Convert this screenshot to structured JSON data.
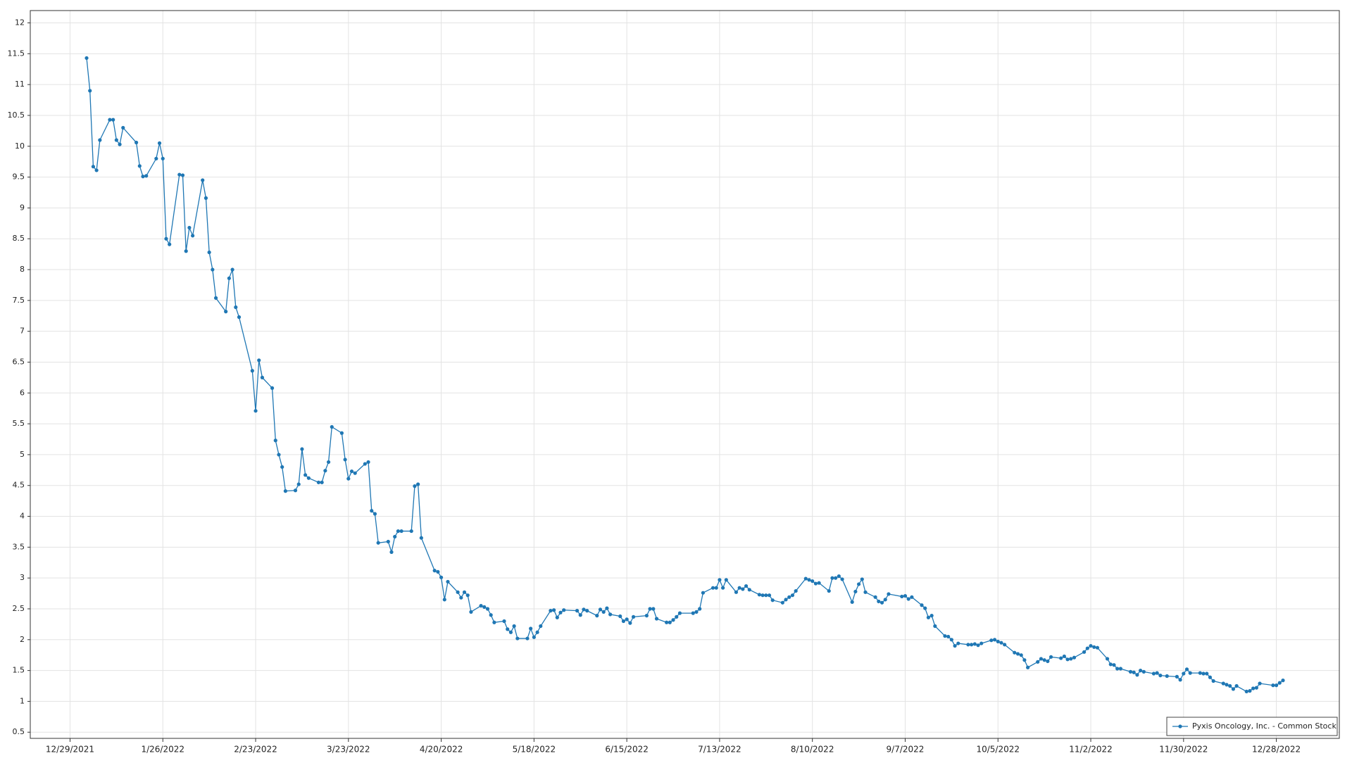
{
  "chart_data": {
    "type": "line",
    "series": [
      {
        "name": "Pyxis Oncology, Inc. - Common Stock",
        "color": "#1f77b4",
        "x": [
          "1/3/2022",
          "1/4/2022",
          "1/5/2022",
          "1/6/2022",
          "1/7/2022",
          "1/10/2022",
          "1/11/2022",
          "1/12/2022",
          "1/13/2022",
          "1/14/2022",
          "1/18/2022",
          "1/19/2022",
          "1/20/2022",
          "1/21/2022",
          "1/24/2022",
          "1/25/2022",
          "1/26/2022",
          "1/27/2022",
          "1/28/2022",
          "1/31/2022",
          "2/1/2022",
          "2/2/2022",
          "2/3/2022",
          "2/4/2022",
          "2/7/2022",
          "2/8/2022",
          "2/9/2022",
          "2/10/2022",
          "2/11/2022",
          "2/14/2022",
          "2/15/2022",
          "2/16/2022",
          "2/17/2022",
          "2/18/2022",
          "2/22/2022",
          "2/23/2022",
          "2/24/2022",
          "2/25/2022",
          "2/28/2022",
          "3/1/2022",
          "3/2/2022",
          "3/3/2022",
          "3/4/2022",
          "3/7/2022",
          "3/8/2022",
          "3/9/2022",
          "3/10/2022",
          "3/11/2022",
          "3/14/2022",
          "3/15/2022",
          "3/16/2022",
          "3/17/2022",
          "3/18/2022",
          "3/21/2022",
          "3/22/2022",
          "3/23/2022",
          "3/24/2022",
          "3/25/2022",
          "3/28/2022",
          "3/29/2022",
          "3/30/2022",
          "3/31/2022",
          "4/1/2022",
          "4/4/2022",
          "4/5/2022",
          "4/6/2022",
          "4/7/2022",
          "4/8/2022",
          "4/11/2022",
          "4/12/2022",
          "4/13/2022",
          "4/14/2022",
          "4/18/2022",
          "4/19/2022",
          "4/20/2022",
          "4/21/2022",
          "4/22/2022",
          "4/25/2022",
          "4/26/2022",
          "4/27/2022",
          "4/28/2022",
          "4/29/2022",
          "5/2/2022",
          "5/3/2022",
          "5/4/2022",
          "5/5/2022",
          "5/6/2022",
          "5/9/2022",
          "5/10/2022",
          "5/11/2022",
          "5/12/2022",
          "5/13/2022",
          "5/16/2022",
          "5/17/2022",
          "5/18/2022",
          "5/19/2022",
          "5/20/2022",
          "5/23/2022",
          "5/24/2022",
          "5/25/2022",
          "5/26/2022",
          "5/27/2022",
          "5/31/2022",
          "6/1/2022",
          "6/2/2022",
          "6/3/2022",
          "6/6/2022",
          "6/7/2022",
          "6/8/2022",
          "6/9/2022",
          "6/10/2022",
          "6/13/2022",
          "6/14/2022",
          "6/15/2022",
          "6/16/2022",
          "6/17/2022",
          "6/21/2022",
          "6/22/2022",
          "6/23/2022",
          "6/24/2022",
          "6/27/2022",
          "6/28/2022",
          "6/29/2022",
          "6/30/2022",
          "7/1/2022",
          "7/5/2022",
          "7/6/2022",
          "7/7/2022",
          "7/8/2022",
          "7/11/2022",
          "7/12/2022",
          "7/13/2022",
          "7/14/2022",
          "7/15/2022",
          "7/18/2022",
          "7/19/2022",
          "7/20/2022",
          "7/21/2022",
          "7/22/2022",
          "7/25/2022",
          "7/26/2022",
          "7/27/2022",
          "7/28/2022",
          "7/29/2022",
          "8/1/2022",
          "8/2/2022",
          "8/3/2022",
          "8/4/2022",
          "8/5/2022",
          "8/8/2022",
          "8/9/2022",
          "8/10/2022",
          "8/11/2022",
          "8/12/2022",
          "8/15/2022",
          "8/16/2022",
          "8/17/2022",
          "8/18/2022",
          "8/19/2022",
          "8/22/2022",
          "8/23/2022",
          "8/24/2022",
          "8/25/2022",
          "8/26/2022",
          "8/29/2022",
          "8/30/2022",
          "8/31/2022",
          "9/1/2022",
          "9/2/2022",
          "9/6/2022",
          "9/7/2022",
          "9/8/2022",
          "9/9/2022",
          "9/12/2022",
          "9/13/2022",
          "9/14/2022",
          "9/15/2022",
          "9/16/2022",
          "9/19/2022",
          "9/20/2022",
          "9/21/2022",
          "9/22/2022",
          "9/23/2022",
          "9/26/2022",
          "9/27/2022",
          "9/28/2022",
          "9/29/2022",
          "9/30/2022",
          "10/3/2022",
          "10/4/2022",
          "10/5/2022",
          "10/6/2022",
          "10/7/2022",
          "10/10/2022",
          "10/11/2022",
          "10/12/2022",
          "10/13/2022",
          "10/14/2022",
          "10/17/2022",
          "10/18/2022",
          "10/19/2022",
          "10/20/2022",
          "10/21/2022",
          "10/24/2022",
          "10/25/2022",
          "10/26/2022",
          "10/27/2022",
          "10/28/2022",
          "10/31/2022",
          "11/1/2022",
          "11/2/2022",
          "11/3/2022",
          "11/4/2022",
          "11/7/2022",
          "11/8/2022",
          "11/9/2022",
          "11/10/2022",
          "11/11/2022",
          "11/14/2022",
          "11/15/2022",
          "11/16/2022",
          "11/17/2022",
          "11/18/2022",
          "11/21/2022",
          "11/22/2022",
          "11/23/2022",
          "11/25/2022",
          "11/28/2022",
          "11/29/2022",
          "11/30/2022",
          "12/1/2022",
          "12/2/2022",
          "12/5/2022",
          "12/6/2022",
          "12/7/2022",
          "12/8/2022",
          "12/9/2022",
          "12/12/2022",
          "12/13/2022",
          "12/14/2022",
          "12/15/2022",
          "12/16/2022",
          "12/19/2022",
          "12/20/2022",
          "12/21/2022",
          "12/22/2022",
          "12/23/2022",
          "12/27/2022",
          "12/28/2022",
          "12/29/2022",
          "12/30/2022"
        ],
        "values": [
          11.43,
          10.9,
          9.67,
          9.61,
          10.1,
          10.43,
          10.43,
          10.1,
          10.03,
          10.3,
          10.06,
          9.68,
          9.51,
          9.52,
          9.8,
          10.05,
          9.8,
          8.5,
          8.41,
          9.54,
          9.53,
          8.3,
          8.68,
          8.55,
          9.45,
          9.16,
          8.28,
          8.0,
          7.54,
          7.32,
          7.86,
          8.0,
          7.39,
          7.23,
          6.36,
          5.71,
          6.53,
          6.25,
          6.08,
          5.23,
          5.0,
          4.8,
          4.41,
          4.42,
          4.52,
          5.09,
          4.67,
          4.62,
          4.55,
          4.55,
          4.74,
          4.88,
          5.45,
          5.35,
          4.92,
          4.61,
          4.73,
          4.7,
          4.85,
          4.88,
          4.09,
          4.04,
          3.57,
          3.59,
          3.42,
          3.67,
          3.76,
          3.76,
          3.76,
          4.49,
          4.52,
          3.65,
          3.12,
          3.1,
          3.01,
          2.65,
          2.94,
          2.77,
          2.68,
          2.77,
          2.72,
          2.45,
          2.55,
          2.53,
          2.5,
          2.4,
          2.28,
          2.3,
          2.17,
          2.12,
          2.22,
          2.02,
          2.02,
          2.18,
          2.04,
          2.12,
          2.22,
          2.47,
          2.48,
          2.36,
          2.44,
          2.48,
          2.47,
          2.4,
          2.49,
          2.47,
          2.39,
          2.49,
          2.45,
          2.51,
          2.41,
          2.38,
          2.3,
          2.33,
          2.27,
          2.37,
          2.39,
          2.5,
          2.5,
          2.34,
          2.28,
          2.28,
          2.32,
          2.37,
          2.43,
          2.43,
          2.45,
          2.5,
          2.76,
          2.84,
          2.84,
          2.97,
          2.84,
          2.97,
          2.77,
          2.84,
          2.82,
          2.87,
          2.81,
          2.73,
          2.72,
          2.72,
          2.72,
          2.64,
          2.6,
          2.65,
          2.69,
          2.72,
          2.79,
          2.99,
          2.97,
          2.95,
          2.91,
          2.92,
          2.79,
          3.0,
          3.0,
          3.03,
          2.98,
          2.61,
          2.78,
          2.9,
          2.98,
          2.77,
          2.69,
          2.62,
          2.6,
          2.65,
          2.74,
          2.7,
          2.71,
          2.66,
          2.69,
          2.56,
          2.51,
          2.36,
          2.39,
          2.22,
          2.06,
          2.05,
          2.0,
          1.9,
          1.94,
          1.92,
          1.92,
          1.93,
          1.91,
          1.94,
          1.99,
          2.0,
          1.97,
          1.95,
          1.92,
          1.79,
          1.77,
          1.75,
          1.67,
          1.55,
          1.64,
          1.69,
          1.67,
          1.65,
          1.72,
          1.7,
          1.73,
          1.68,
          1.69,
          1.71,
          1.8,
          1.86,
          1.9,
          1.88,
          1.87,
          1.69,
          1.6,
          1.59,
          1.53,
          1.53,
          1.48,
          1.47,
          1.43,
          1.5,
          1.48,
          1.45,
          1.46,
          1.42,
          1.41,
          1.4,
          1.35,
          1.45,
          1.52,
          1.46,
          1.46,
          1.45,
          1.45,
          1.39,
          1.33,
          1.29,
          1.27,
          1.25,
          1.2,
          1.25,
          1.16,
          1.17,
          1.21,
          1.22,
          1.29,
          1.26,
          1.26,
          1.3,
          1.34
        ]
      }
    ],
    "xlim": [
      "12/17/2021",
      "1/16/2023"
    ],
    "xticks": [
      "12/29/2021",
      "1/26/2022",
      "2/23/2022",
      "3/23/2022",
      "4/20/2022",
      "5/18/2022",
      "6/15/2022",
      "7/13/2022",
      "8/10/2022",
      "9/7/2022",
      "10/5/2022",
      "11/2/2022",
      "11/30/2022",
      "12/28/2022"
    ],
    "ylim": [
      0.4,
      12.2
    ],
    "yticks": [
      0.5,
      1,
      1.5,
      2,
      2.5,
      3,
      3.5,
      4,
      4.5,
      5,
      5.5,
      6,
      6.5,
      7,
      7.5,
      8,
      8.5,
      9,
      9.5,
      10,
      10.5,
      11,
      11.5,
      12
    ],
    "grid": true,
    "legend": "bottom-right"
  }
}
